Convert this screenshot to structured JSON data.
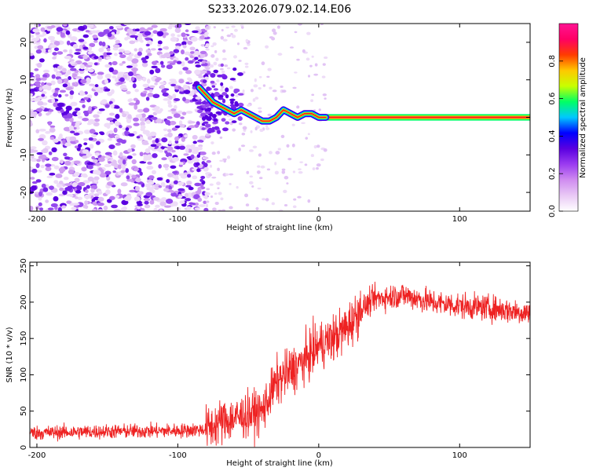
{
  "title": "S233.2026.079.02.14.E06",
  "chart_data": [
    {
      "type": "heatmap",
      "panel": "spectrogram",
      "xlabel": "Height of straight line (km)",
      "ylabel": "Frequency (Hz)",
      "xlim": [
        -205,
        150
      ],
      "ylim": [
        -25,
        25
      ],
      "xticks": [
        -200,
        -100,
        0,
        100
      ],
      "yticks": [
        -20,
        -10,
        0,
        10,
        20
      ],
      "noise_region_km": [
        -205,
        -80
      ],
      "transition_region_km": [
        -80,
        5
      ],
      "carrier_line_hz": 0,
      "trace": {
        "x": [
          -85,
          -80,
          -75,
          -70,
          -65,
          -60,
          -55,
          -50,
          -45,
          -40,
          -35,
          -30,
          -25,
          -20,
          -15,
          -10,
          -5,
          0,
          5
        ],
        "y": [
          8,
          6,
          4,
          3,
          2,
          1,
          2,
          1,
          0,
          -1,
          -1,
          0,
          2,
          1,
          0,
          1,
          1,
          0,
          0
        ]
      },
      "colorbar": {
        "label": "Normalized spectral amplitude",
        "range": [
          0,
          1
        ],
        "ticks": [
          0.0,
          0.2,
          0.4,
          0.6,
          0.8
        ],
        "tick_labels": [
          "0.0",
          "0.2",
          "0.4",
          "0.6",
          "0.8"
        ],
        "colors": [
          "#ffffff",
          "#e9c9f5",
          "#cf8cf0",
          "#9b3cf0",
          "#5a00e0",
          "#0000ff",
          "#00c8ff",
          "#00ff64",
          "#c8ff00",
          "#ffc800",
          "#ff3c00",
          "#ff0064",
          "#ff1493"
        ]
      }
    },
    {
      "type": "line",
      "panel": "snr",
      "xlabel": "Height of straight line (km)",
      "ylabel": "SNR (10 * v/v)",
      "xlim": [
        -205,
        150
      ],
      "ylim": [
        0,
        255
      ],
      "xticks": [
        -200,
        -100,
        0,
        100
      ],
      "yticks": [
        0,
        50,
        100,
        150,
        200,
        250
      ],
      "color": "#ee2222",
      "envelope": {
        "x": [
          -205,
          -150,
          -100,
          -80,
          -70,
          -60,
          -50,
          -40,
          -30,
          -20,
          -10,
          0,
          10,
          20,
          30,
          40,
          60,
          80,
          100,
          120,
          150
        ],
        "y": [
          20,
          22,
          23,
          25,
          35,
          40,
          45,
          50,
          90,
          105,
          120,
          140,
          150,
          165,
          190,
          205,
          210,
          200,
          195,
          192,
          185
        ]
      }
    }
  ]
}
